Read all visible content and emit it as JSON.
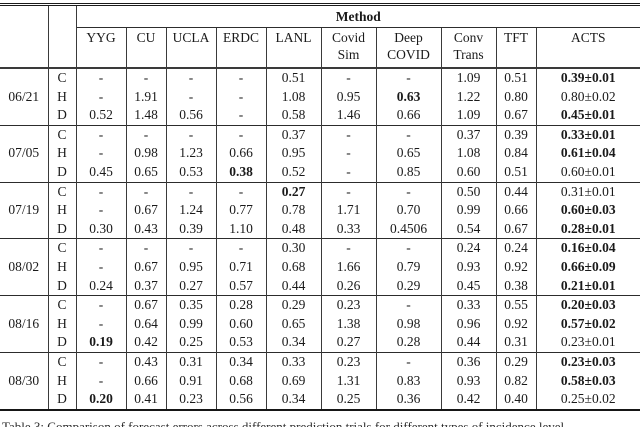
{
  "table": {
    "method_header": "Method",
    "columns": [
      {
        "lines": [
          "YYG"
        ]
      },
      {
        "lines": [
          "CU"
        ]
      },
      {
        "lines": [
          "UCLA"
        ]
      },
      {
        "lines": [
          "ERDC"
        ]
      },
      {
        "lines": [
          "LANL"
        ]
      },
      {
        "lines": [
          "Covid",
          "Sim"
        ]
      },
      {
        "lines": [
          "Deep",
          "COVID"
        ]
      },
      {
        "lines": [
          "Conv",
          "Trans"
        ]
      },
      {
        "lines": [
          "TFT"
        ]
      },
      {
        "lines": [
          "ACTS"
        ]
      }
    ],
    "blocks": [
      {
        "date": "06/21",
        "rows": [
          {
            "target": "C",
            "cells": [
              "-",
              "-",
              "-",
              "-",
              "0.51",
              "-",
              "-",
              "1.09",
              "0.51",
              "0.39±0.01"
            ],
            "bold": [
              9
            ]
          },
          {
            "target": "H",
            "cells": [
              "-",
              "1.91",
              "-",
              "-",
              "1.08",
              "0.95",
              "0.63",
              "1.22",
              "0.80",
              "0.80±0.02"
            ],
            "bold": [
              6
            ]
          },
          {
            "target": "D",
            "cells": [
              "0.52",
              "1.48",
              "0.56",
              "-",
              "0.58",
              "1.46",
              "0.66",
              "1.09",
              "0.67",
              "0.45±0.01"
            ],
            "bold": [
              9
            ]
          }
        ]
      },
      {
        "date": "07/05",
        "rows": [
          {
            "target": "C",
            "cells": [
              "-",
              "-",
              "-",
              "-",
              "0.37",
              "-",
              "-",
              "0.37",
              "0.39",
              "0.33±0.01"
            ],
            "bold": [
              9
            ]
          },
          {
            "target": "H",
            "cells": [
              "-",
              "0.98",
              "1.23",
              "0.66",
              "0.95",
              "-",
              "0.65",
              "1.08",
              "0.84",
              "0.61±0.04"
            ],
            "bold": [
              9
            ]
          },
          {
            "target": "D",
            "cells": [
              "0.45",
              "0.65",
              "0.53",
              "0.38",
              "0.52",
              "-",
              "0.85",
              "0.60",
              "0.51",
              "0.60±0.01"
            ],
            "bold": [
              3
            ]
          }
        ]
      },
      {
        "date": "07/19",
        "rows": [
          {
            "target": "C",
            "cells": [
              "-",
              "-",
              "-",
              "-",
              "0.27",
              "-",
              "-",
              "0.50",
              "0.44",
              "0.31±0.01"
            ],
            "bold": [
              4
            ]
          },
          {
            "target": "H",
            "cells": [
              "-",
              "0.67",
              "1.24",
              "0.77",
              "0.78",
              "1.71",
              "0.70",
              "0.99",
              "0.66",
              "0.60±0.03"
            ],
            "bold": [
              9
            ]
          },
          {
            "target": "D",
            "cells": [
              "0.30",
              "0.43",
              "0.39",
              "1.10",
              "0.48",
              "0.33",
              "0.4506",
              "0.54",
              "0.67",
              "0.28±0.01"
            ],
            "bold": [
              9
            ]
          }
        ]
      },
      {
        "date": "08/02",
        "rows": [
          {
            "target": "C",
            "cells": [
              "-",
              "-",
              "-",
              "-",
              "0.30",
              "-",
              "-",
              "0.24",
              "0.24",
              "0.16±0.04"
            ],
            "bold": [
              9
            ]
          },
          {
            "target": "H",
            "cells": [
              "-",
              "0.67",
              "0.95",
              "0.71",
              "0.68",
              "1.66",
              "0.79",
              "0.93",
              "0.92",
              "0.66±0.09"
            ],
            "bold": [
              9
            ]
          },
          {
            "target": "D",
            "cells": [
              "0.24",
              "0.37",
              "0.27",
              "0.57",
              "0.44",
              "0.26",
              "0.29",
              "0.45",
              "0.38",
              "0.21±0.01"
            ],
            "bold": [
              9
            ]
          }
        ]
      },
      {
        "date": "08/16",
        "rows": [
          {
            "target": "C",
            "cells": [
              "-",
              "0.67",
              "0.35",
              "0.28",
              "0.29",
              "0.23",
              "-",
              "0.33",
              "0.55",
              "0.20±0.03"
            ],
            "bold": [
              9
            ]
          },
          {
            "target": "H",
            "cells": [
              "-",
              "0.64",
              "0.99",
              "0.60",
              "0.65",
              "1.38",
              "0.98",
              "0.96",
              "0.92",
              "0.57±0.02"
            ],
            "bold": [
              9
            ]
          },
          {
            "target": "D",
            "cells": [
              "0.19",
              "0.42",
              "0.25",
              "0.53",
              "0.34",
              "0.27",
              "0.28",
              "0.44",
              "0.31",
              "0.23±0.01"
            ],
            "bold": [
              0
            ]
          }
        ]
      },
      {
        "date": "08/30",
        "rows": [
          {
            "target": "C",
            "cells": [
              "-",
              "0.43",
              "0.31",
              "0.34",
              "0.33",
              "0.23",
              "-",
              "0.36",
              "0.29",
              "0.23±0.03"
            ],
            "bold": [
              9
            ]
          },
          {
            "target": "H",
            "cells": [
              "-",
              "0.66",
              "0.91",
              "0.68",
              "0.69",
              "1.31",
              "0.83",
              "0.93",
              "0.82",
              "0.58±0.03"
            ],
            "bold": [
              9
            ]
          },
          {
            "target": "D",
            "cells": [
              "0.20",
              "0.41",
              "0.23",
              "0.56",
              "0.34",
              "0.25",
              "0.36",
              "0.42",
              "0.40",
              "0.25±0.02"
            ],
            "bold": [
              0
            ]
          }
        ]
      }
    ]
  },
  "caption": "Table 3: Comparison of forecast errors across different prediction trials for different types of incidence level"
}
